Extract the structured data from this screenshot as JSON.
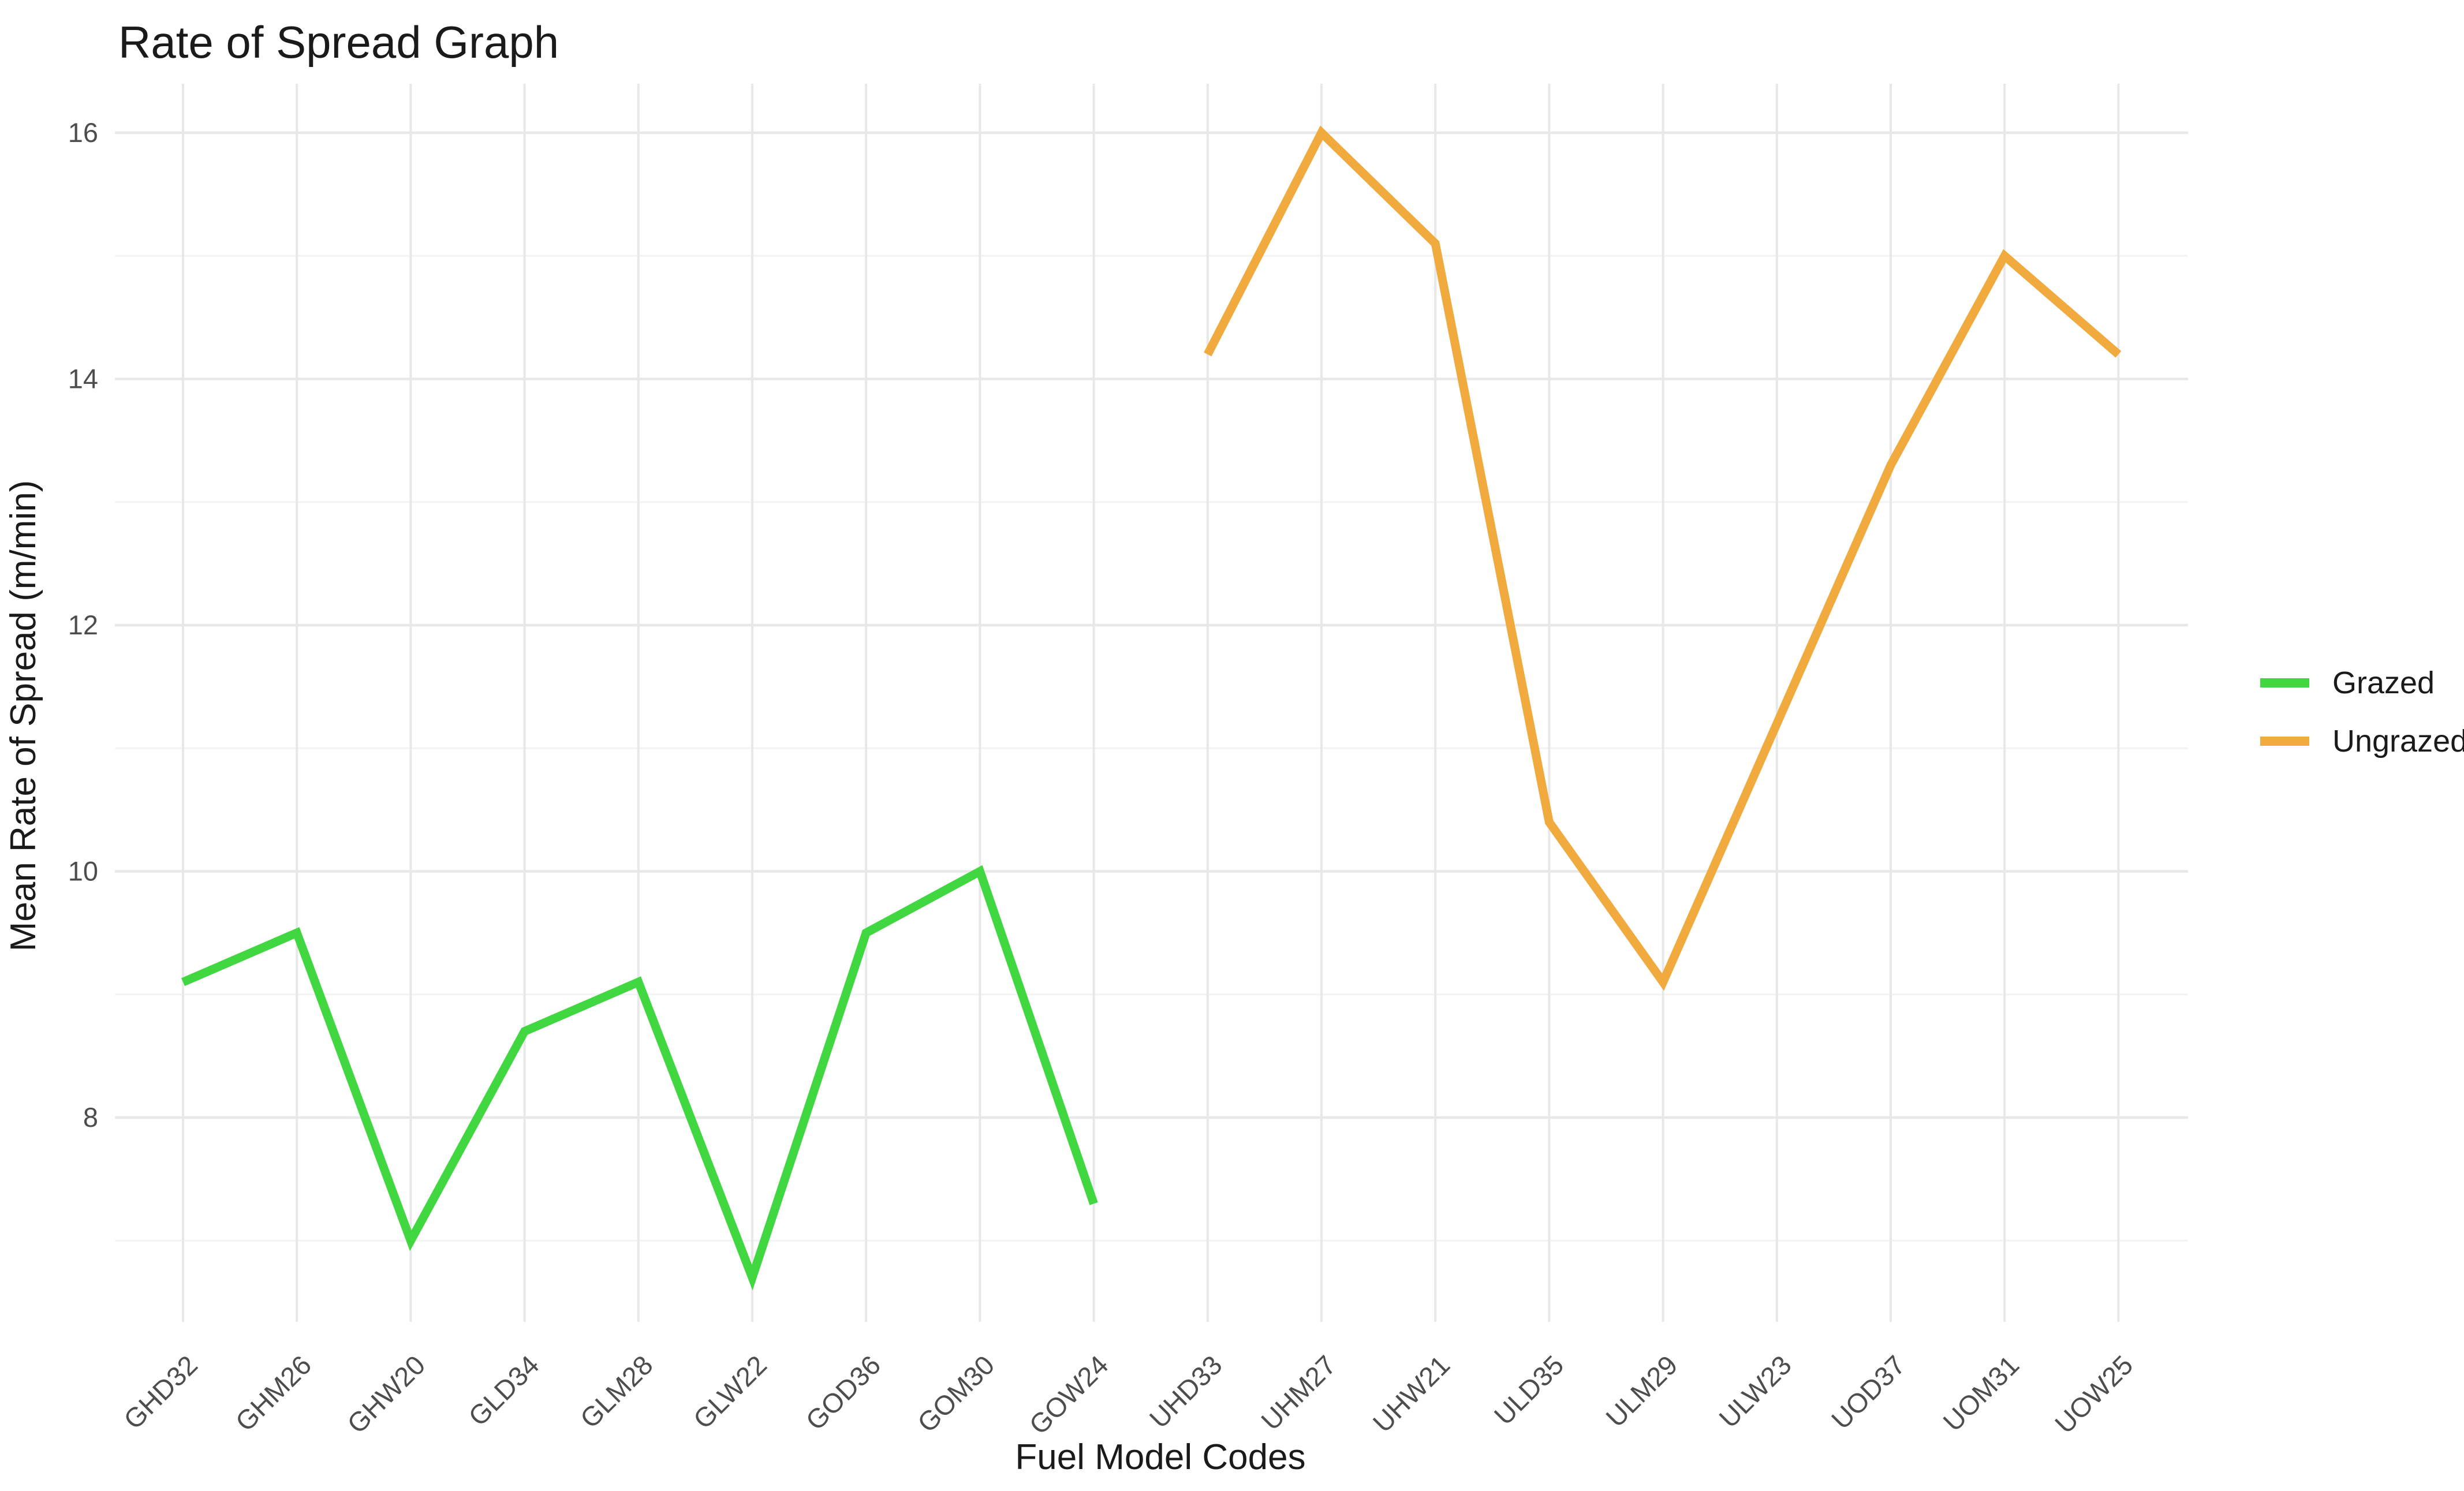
{
  "palette": {
    "background": "#FFFFFF",
    "grid_major": "#E8E8E8",
    "grid_minor": "#F3F3F3",
    "tick_label": "#4D4D4D",
    "text": "#1A1A1A",
    "grazed_green": "#41D741",
    "ungrazed_orange": "#F0AA3E"
  },
  "legend": {
    "entries": [
      {
        "label": "Grazed",
        "color": "#41D741"
      },
      {
        "label": "Ungrazed",
        "color": "#F0AA3E"
      }
    ]
  },
  "chart_data": {
    "type": "line",
    "title": "Rate of Spread Graph",
    "xlabel": "Fuel Model Codes",
    "ylabel": "Mean Rate of Spread (m/min)",
    "categories": [
      "GHD32",
      "GHM26",
      "GHW20",
      "GLD34",
      "GLM28",
      "GLW22",
      "GOD36",
      "GOM30",
      "GOW24",
      "UHD33",
      "UHM27",
      "UHW21",
      "ULD35",
      "ULM29",
      "ULW23",
      "UOD37",
      "UOM31",
      "UOW25"
    ],
    "series": [
      {
        "name": "Grazed",
        "color": "#41D741",
        "values": [
          9.1,
          9.5,
          7.0,
          8.7,
          9.1,
          6.7,
          9.5,
          10.0,
          7.3,
          null,
          null,
          null,
          null,
          null,
          null,
          null,
          null,
          null
        ]
      },
      {
        "name": "Ungrazed",
        "color": "#F0AA3E",
        "values": [
          null,
          null,
          null,
          null,
          null,
          null,
          null,
          null,
          null,
          14.2,
          16.0,
          15.1,
          10.4,
          9.1,
          11.2,
          13.3,
          15.0,
          14.2
        ]
      }
    ],
    "yticks": [
      8,
      10,
      12,
      14,
      16
    ],
    "yticks_minor": [
      7,
      9,
      11,
      13,
      15
    ],
    "ylim": [
      6.3,
      16.6
    ],
    "grid": true,
    "legend_position": "right-center"
  }
}
